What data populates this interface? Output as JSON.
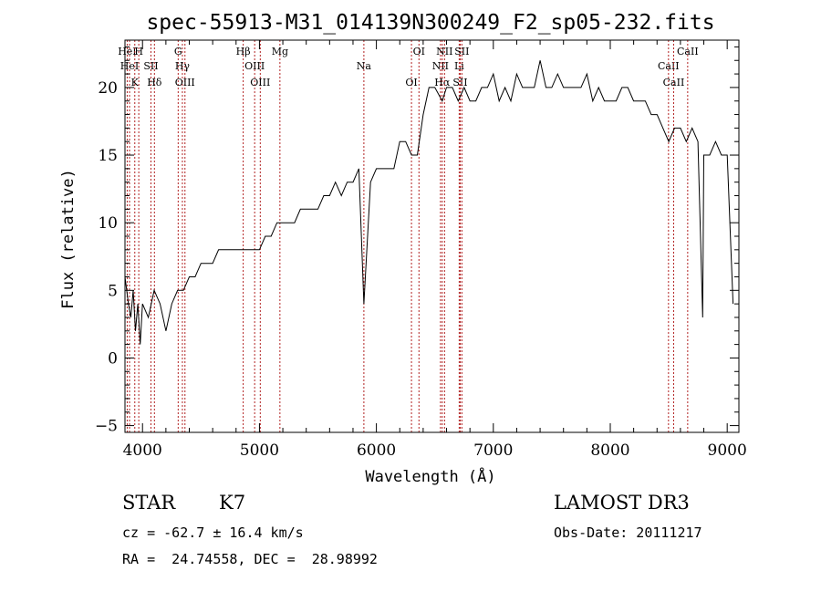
{
  "chart_data": {
    "type": "line",
    "title": "spec-55913-M31_014139N300249_F2_sp05-232.fits",
    "xlabel": "Wavelength (Å)",
    "ylabel": "Flux (relative)",
    "xlim": [
      3850,
      9100
    ],
    "ylim": [
      -5.5,
      23.5
    ],
    "x_ticks": [
      4000,
      5000,
      6000,
      7000,
      8000,
      9000
    ],
    "y_ticks": [
      -5,
      0,
      5,
      10,
      15,
      20
    ],
    "grid": false,
    "series": [
      {
        "name": "spectrum",
        "x": [
          3850,
          3880,
          3900,
          3920,
          3940,
          3960,
          3980,
          4000,
          4050,
          4100,
          4150,
          4200,
          4250,
          4300,
          4350,
          4400,
          4450,
          4500,
          4550,
          4600,
          4650,
          4700,
          4750,
          4800,
          4850,
          4900,
          4950,
          5000,
          5050,
          5100,
          5150,
          5200,
          5250,
          5300,
          5350,
          5400,
          5450,
          5500,
          5550,
          5600,
          5650,
          5700,
          5750,
          5800,
          5850,
          5893,
          5950,
          6000,
          6050,
          6100,
          6150,
          6200,
          6250,
          6300,
          6350,
          6400,
          6450,
          6500,
          6563,
          6600,
          6650,
          6700,
          6750,
          6800,
          6850,
          6900,
          6950,
          7000,
          7050,
          7100,
          7150,
          7200,
          7250,
          7300,
          7350,
          7400,
          7450,
          7500,
          7550,
          7600,
          7650,
          7700,
          7750,
          7800,
          7850,
          7900,
          7950,
          8000,
          8050,
          8100,
          8150,
          8200,
          8250,
          8300,
          8350,
          8400,
          8450,
          8500,
          8550,
          8600,
          8650,
          8700,
          8750,
          8790,
          8800,
          8850,
          8900,
          8950,
          9000,
          9050
        ],
        "values": [
          6,
          4,
          3,
          5,
          2,
          4,
          1,
          4,
          3,
          5,
          4,
          2,
          4,
          5,
          5,
          6,
          6,
          7,
          7,
          7,
          8,
          8,
          8,
          8,
          8,
          8,
          8,
          8,
          9,
          9,
          10,
          10,
          10,
          10,
          11,
          11,
          11,
          11,
          12,
          12,
          13,
          12,
          13,
          13,
          14,
          4,
          13,
          14,
          14,
          14,
          14,
          16,
          16,
          15,
          15,
          18,
          20,
          20,
          19,
          20,
          20,
          19,
          20,
          19,
          19,
          20,
          20,
          21,
          19,
          20,
          19,
          21,
          20,
          20,
          20,
          22,
          20,
          20,
          21,
          20,
          20,
          20,
          20,
          21,
          19,
          20,
          19,
          19,
          19,
          20,
          20,
          19,
          19,
          19,
          18,
          18,
          17,
          16,
          17,
          17,
          16,
          17,
          16,
          3,
          15,
          15,
          16,
          15,
          15,
          4
        ]
      }
    ],
    "annotation_lines": [
      {
        "wavelength": 3869,
        "label": "HeI"
      },
      {
        "wavelength": 3889,
        "label": "HeI"
      },
      {
        "wavelength": 3934,
        "label": "K"
      },
      {
        "wavelength": 3968,
        "label": "H"
      },
      {
        "wavelength": 4072,
        "label": "SII"
      },
      {
        "wavelength": 4102,
        "label": "Hδ"
      },
      {
        "wavelength": 4305,
        "label": "G"
      },
      {
        "wavelength": 4341,
        "label": "Hγ"
      },
      {
        "wavelength": 4363,
        "label": "OIII"
      },
      {
        "wavelength": 4861,
        "label": "Hβ"
      },
      {
        "wavelength": 4959,
        "label": "OIII"
      },
      {
        "wavelength": 5007,
        "label": "OIII"
      },
      {
        "wavelength": 5175,
        "label": "Mg"
      },
      {
        "wavelength": 5893,
        "label": "Na"
      },
      {
        "wavelength": 6300,
        "label": "OI"
      },
      {
        "wavelength": 6364,
        "label": "OI"
      },
      {
        "wavelength": 6548,
        "label": "NII"
      },
      {
        "wavelength": 6563,
        "label": "Hα"
      },
      {
        "wavelength": 6583,
        "label": "NII"
      },
      {
        "wavelength": 6708,
        "label": "Li"
      },
      {
        "wavelength": 6717,
        "label": "SII"
      },
      {
        "wavelength": 6731,
        "label": "SII"
      },
      {
        "wavelength": 8498,
        "label": "CaII"
      },
      {
        "wavelength": 8542,
        "label": "CaII"
      },
      {
        "wavelength": 8662,
        "label": "CaII"
      }
    ]
  },
  "footer": {
    "object_class": "STAR",
    "subclass": "K7",
    "survey": "LAMOST DR3",
    "redshift_text": "cz = -62.7 ± 16.4 km/s",
    "obs_date_text": "Obs-Date: 20111217",
    "coords_text": "RA =  24.74558, DEC =  28.98992"
  },
  "colors": {
    "spectrum": "#000000",
    "annotation_line": "#b22222",
    "axes": "#000000"
  }
}
